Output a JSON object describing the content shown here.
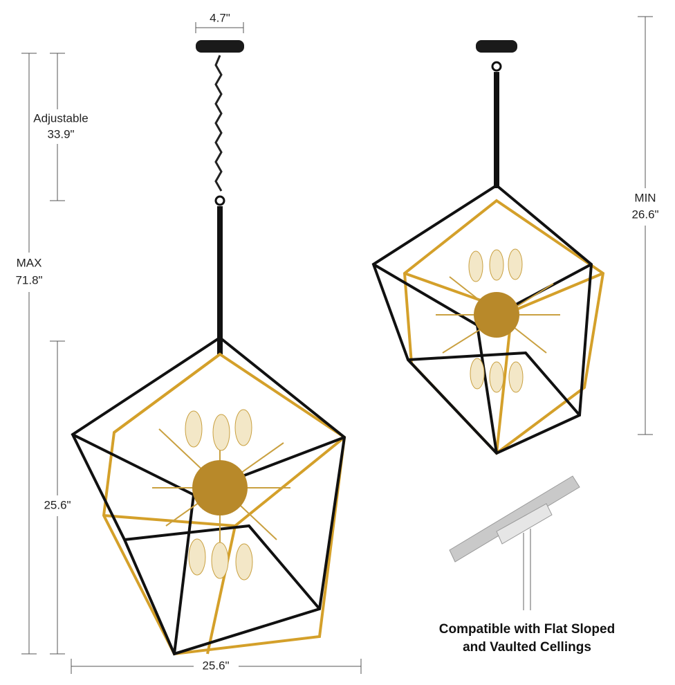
{
  "dimensions": {
    "canopy_width": "4.7\"",
    "adjustable_label": "Adjustable",
    "adjustable_value": "33.9\"",
    "max_label": "MAX",
    "max_value": "71.8\"",
    "body_height": "25.6\"",
    "body_width": "25.6\"",
    "min_label": "MIN",
    "min_value": "26.6\""
  },
  "note": {
    "line1": "Compatible with Flat Sloped",
    "line2": "and Vaulted Cellings"
  }
}
